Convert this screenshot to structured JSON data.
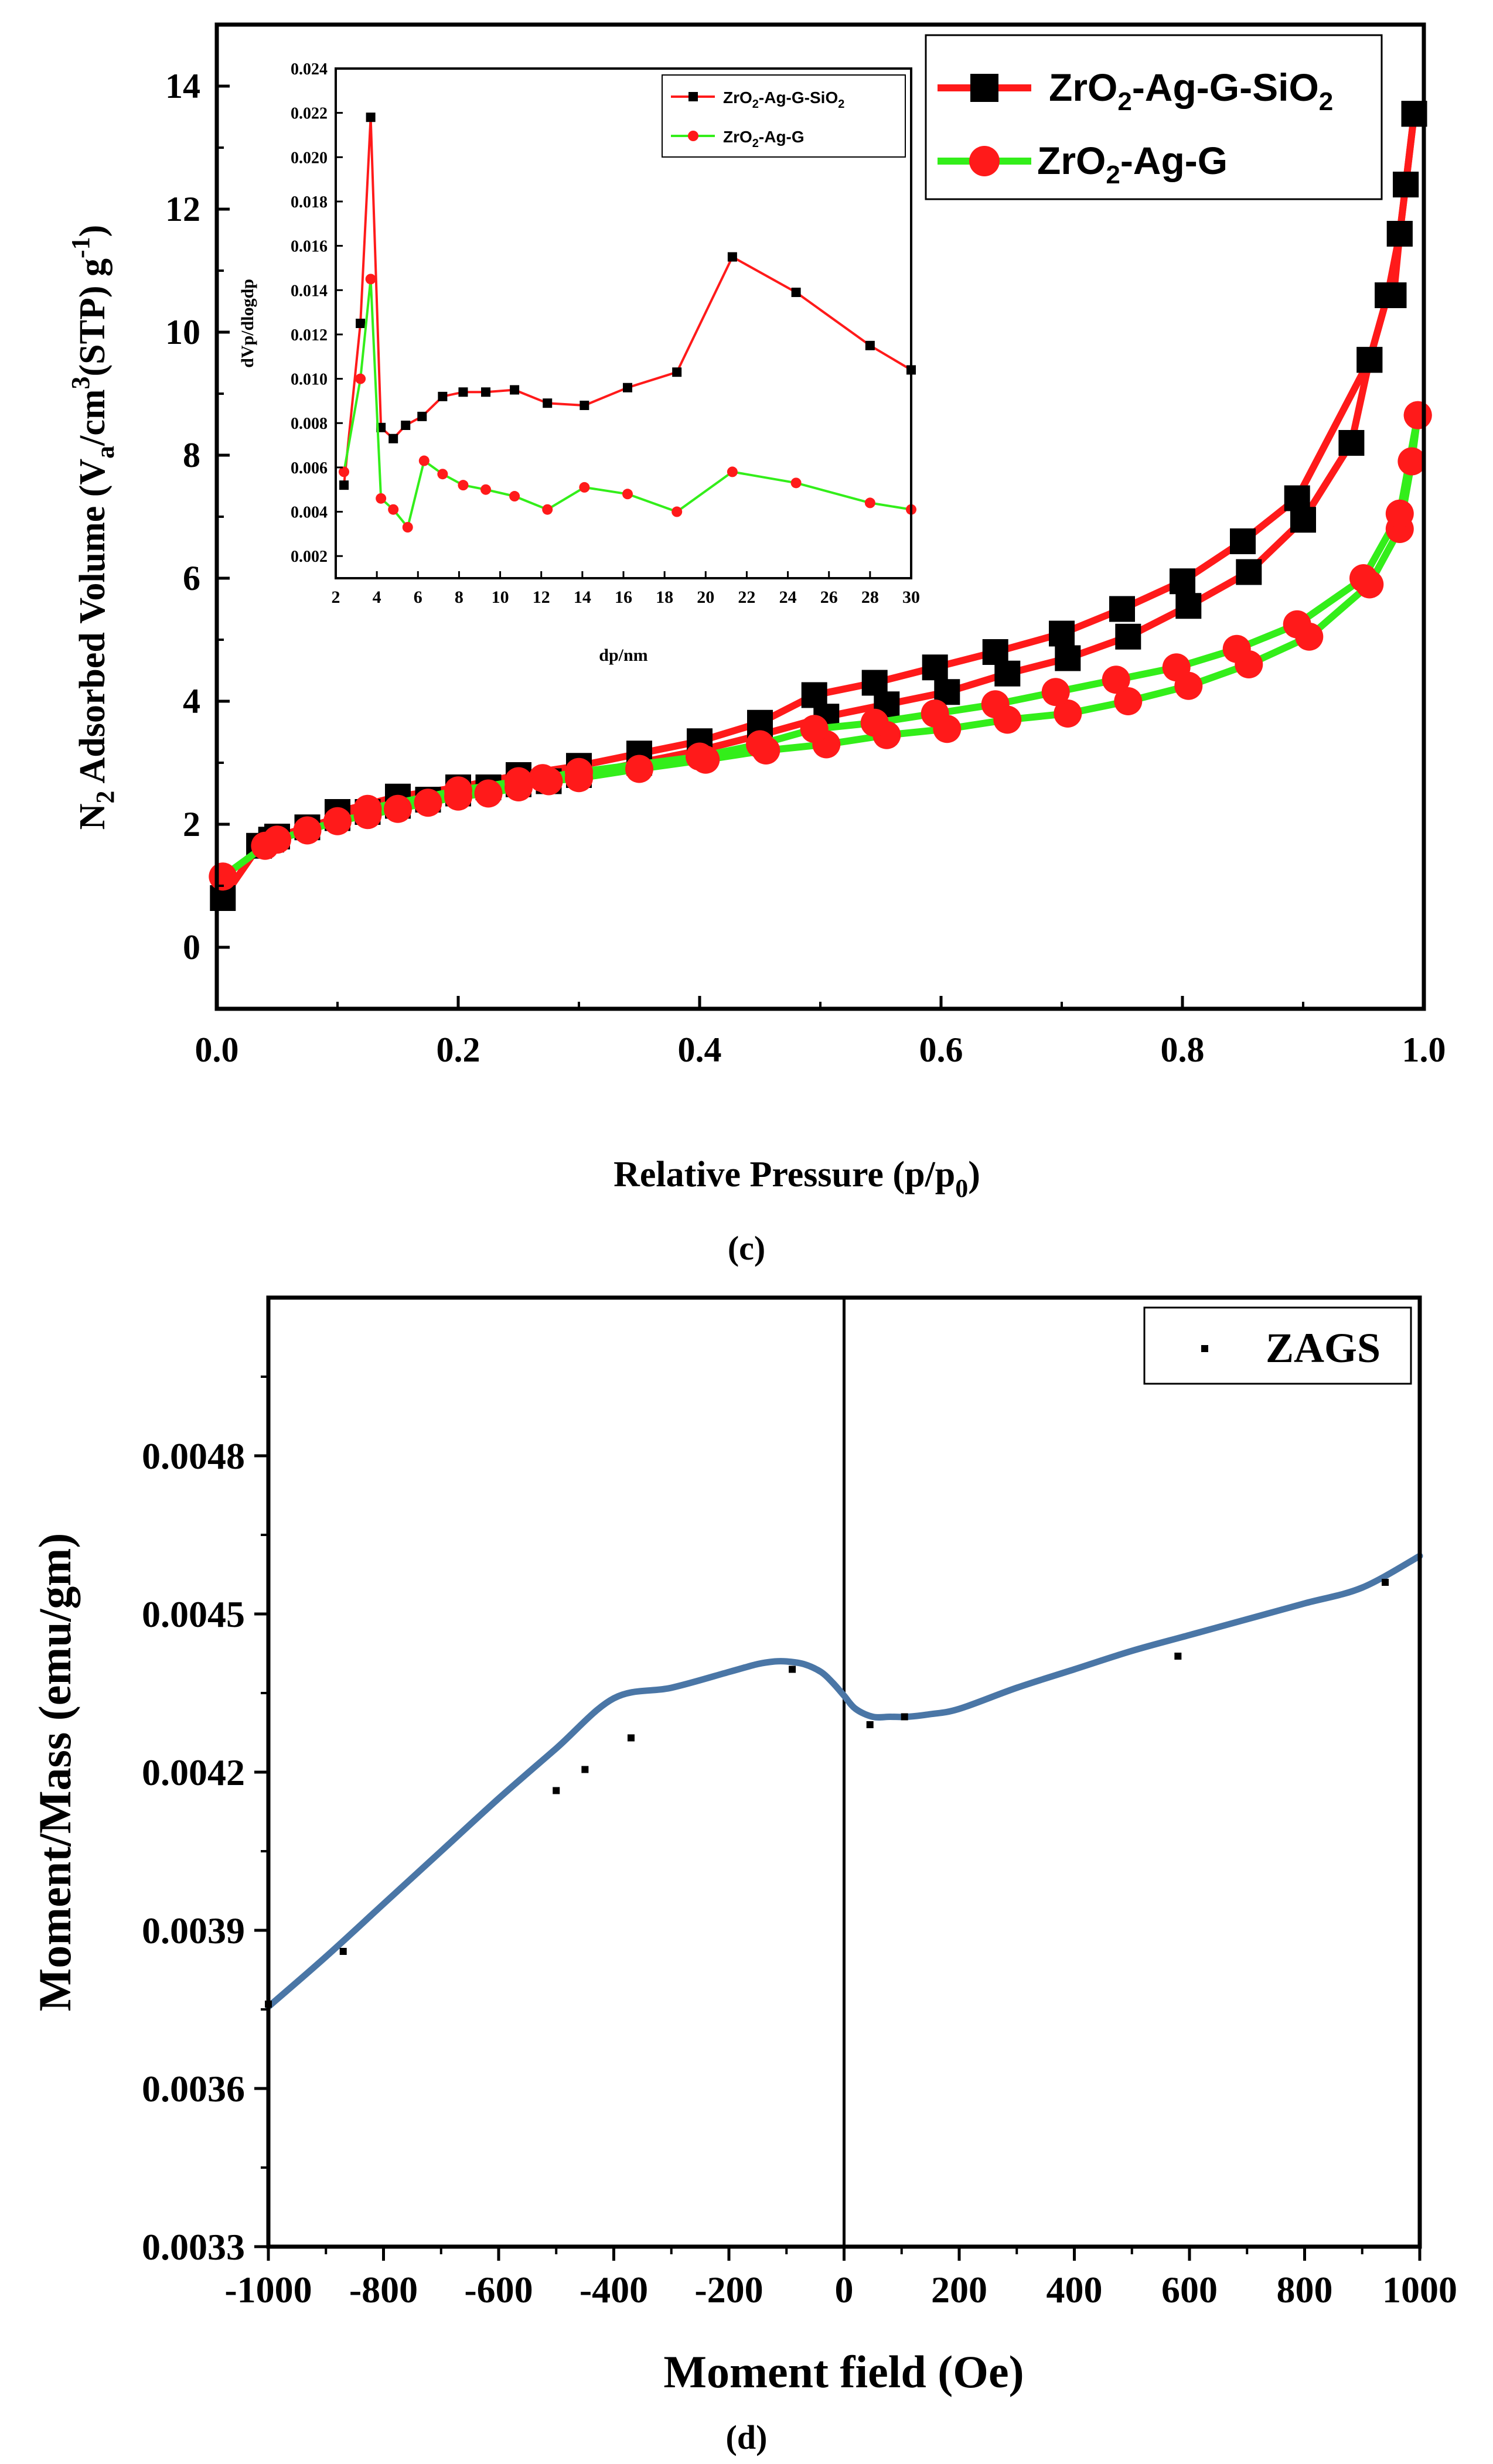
{
  "chart_data": [
    {
      "type": "line",
      "panel_label": "(c)",
      "title": "",
      "xlabel": "Relative Pressure (p/p0)",
      "xlabel_parts": {
        "main": "Relative Pressure (p/p",
        "sub": "0",
        "end": ")"
      },
      "ylabel": "N2 Adsorbed Volume (Va/cm3(STP) g-1)",
      "ylabel_parts": {
        "a": "N",
        "a_sub": "2",
        "b": " Adsorbed Volume (V",
        "b_sub": "a",
        "c": "/cm",
        "c_sup": "3",
        "d": "(STP) g",
        "d_sup": "-1",
        "e": ")"
      },
      "xlim": [
        0.0,
        1.0
      ],
      "ylim": [
        -1,
        15
      ],
      "x_ticks": [
        0.0,
        0.2,
        0.4,
        0.6,
        0.8,
        1.0
      ],
      "x_tick_labels": [
        "0.0",
        "0.2",
        "0.4",
        "0.6",
        "0.8",
        "1.0"
      ],
      "y_ticks": [
        0,
        2,
        4,
        6,
        8,
        10,
        12,
        14
      ],
      "y_tick_labels": [
        "0",
        "2",
        "4",
        "6",
        "8",
        "10",
        "12",
        "14"
      ],
      "legend_position": "top-right",
      "series": [
        {
          "name": "ZrO2-Ag-G-SiO2",
          "name_parts": {
            "a": "ZrO",
            "sub": "2",
            "b": "-Ag-G-SiO",
            "sub2": "2"
          },
          "color": "#ff1a1a",
          "marker": "square",
          "adsorption": {
            "x": [
              0.005,
              0.035,
              0.045,
              0.05,
              0.075,
              0.1,
              0.125,
              0.15,
              0.175,
              0.2,
              0.225,
              0.25,
              0.275,
              0.3,
              0.35,
              0.4,
              0.45,
              0.505,
              0.555,
              0.605,
              0.655,
              0.705,
              0.755,
              0.805,
              0.855,
              0.9,
              0.94,
              0.955,
              0.97,
              0.98,
              0.985,
              0.992
            ],
            "y": [
              0.8,
              1.65,
              1.75,
              1.8,
              1.95,
              2.1,
              2.2,
              2.3,
              2.4,
              2.5,
              2.6,
              2.65,
              2.7,
              2.8,
              3.0,
              3.2,
              3.45,
              3.75,
              3.95,
              4.15,
              4.45,
              4.7,
              5.05,
              5.55,
              6.1,
              6.95,
              8.2,
              9.55,
              10.6,
              11.6,
              12.4,
              13.55
            ]
          },
          "desorption": {
            "x": [
              0.992,
              0.985,
              0.98,
              0.975,
              0.97,
              0.955,
              0.895,
              0.85,
              0.8,
              0.75,
              0.7,
              0.645,
              0.595,
              0.545,
              0.495,
              0.45,
              0.4,
              0.35,
              0.3,
              0.25,
              0.2,
              0.15,
              0.1
            ],
            "y": [
              13.55,
              12.4,
              11.6,
              10.6,
              10.6,
              9.55,
              7.3,
              6.6,
              5.95,
              5.5,
              5.1,
              4.8,
              4.55,
              4.3,
              4.1,
              3.65,
              3.35,
              3.15,
              2.95,
              2.8,
              2.6,
              2.45,
              2.2
            ]
          }
        },
        {
          "name": "ZrO2-Ag-G",
          "name_parts": {
            "a": "ZrO",
            "sub": "2",
            "b": "-Ag-G",
            "sub2": ""
          },
          "color": "#33ee1a",
          "marker": "circle",
          "adsorption": {
            "x": [
              0.005,
              0.04,
              0.05,
              0.075,
              0.1,
              0.125,
              0.15,
              0.175,
              0.2,
              0.225,
              0.25,
              0.275,
              0.3,
              0.35,
              0.405,
              0.455,
              0.505,
              0.555,
              0.605,
              0.655,
              0.705,
              0.755,
              0.805,
              0.855,
              0.905,
              0.955,
              0.98,
              0.99,
              0.995
            ],
            "y": [
              1.15,
              1.65,
              1.75,
              1.9,
              2.05,
              2.15,
              2.25,
              2.35,
              2.45,
              2.5,
              2.6,
              2.7,
              2.75,
              2.9,
              3.05,
              3.2,
              3.3,
              3.45,
              3.55,
              3.7,
              3.8,
              4.0,
              4.25,
              4.6,
              5.05,
              5.9,
              6.8,
              7.9,
              8.65
            ]
          },
          "desorption": {
            "x": [
              0.995,
              0.98,
              0.95,
              0.895,
              0.845,
              0.795,
              0.745,
              0.695,
              0.645,
              0.595,
              0.545,
              0.495,
              0.45,
              0.4,
              0.3,
              0.27,
              0.25,
              0.2,
              0.125
            ],
            "y": [
              8.65,
              7.05,
              6.0,
              5.25,
              4.85,
              4.55,
              4.35,
              4.15,
              3.95,
              3.8,
              3.65,
              3.55,
              3.3,
              3.1,
              2.85,
              2.75,
              2.7,
              2.55,
              2.25
            ]
          }
        }
      ],
      "inset": {
        "type": "line",
        "xlabel": "dp/nm",
        "ylabel": "dVp/dlogdp",
        "xlim": [
          2,
          30
        ],
        "ylim": [
          0.001,
          0.024
        ],
        "x_ticks": [
          2,
          4,
          6,
          8,
          10,
          12,
          14,
          16,
          18,
          20,
          22,
          24,
          26,
          28,
          30
        ],
        "x_tick_labels": [
          "2",
          "4",
          "6",
          "8",
          "10",
          "12",
          "14",
          "16",
          "18",
          "20",
          "22",
          "24",
          "26",
          "28",
          "30"
        ],
        "y_ticks": [
          0.002,
          0.004,
          0.006,
          0.008,
          0.01,
          0.012,
          0.014,
          0.016,
          0.018,
          0.02,
          0.022,
          0.024
        ],
        "y_tick_labels": [
          "0.002",
          "0.004",
          "0.006",
          "0.008",
          "0.010",
          "0.012",
          "0.014",
          "0.016",
          "0.018",
          "0.020",
          "0.022",
          "0.024"
        ],
        "legend_position": "top-right",
        "series": [
          {
            "name": "ZrO2-Ag-G-SiO2",
            "name_parts": {
              "a": "ZrO",
              "sub": "2",
              "b": "-Ag-G-SiO",
              "sub2": "2"
            },
            "color": "#ff1a1a",
            "marker": "square",
            "x": [
              2.4,
              3.2,
              3.7,
              4.2,
              4.8,
              5.4,
              6.2,
              7.2,
              8.2,
              9.3,
              10.7,
              12.3,
              14.1,
              16.2,
              18.6,
              21.3,
              24.4,
              28.0,
              30.0
            ],
            "y": [
              0.0052,
              0.0125,
              0.0218,
              0.0078,
              0.0073,
              0.0079,
              0.0083,
              0.0092,
              0.0094,
              0.0094,
              0.0095,
              0.0089,
              0.0088,
              0.0096,
              0.0103,
              0.0155,
              0.0139,
              0.0115,
              0.0104
            ]
          },
          {
            "name": "ZrO2-Ag-G",
            "name_parts": {
              "a": "ZrO",
              "sub": "2",
              "b": "-Ag-G",
              "sub2": ""
            },
            "color": "#33ee1a",
            "marker": "circle",
            "x": [
              2.4,
              3.2,
              3.7,
              4.2,
              4.8,
              5.5,
              6.3,
              7.2,
              8.2,
              9.3,
              10.7,
              12.3,
              14.1,
              16.2,
              18.6,
              21.3,
              24.4,
              28.0,
              30.0
            ],
            "y": [
              0.0058,
              0.01,
              0.0145,
              0.0046,
              0.0041,
              0.0033,
              0.0063,
              0.0057,
              0.0052,
              0.005,
              0.0047,
              0.0041,
              0.0051,
              0.0048,
              0.004,
              0.0058,
              0.0053,
              0.0044,
              0.0041
            ]
          }
        ]
      }
    },
    {
      "type": "line",
      "panel_label": "(d)",
      "title": "",
      "xlabel": "Moment field (Oe)",
      "ylabel": "Moment/Mass (emu/gm)",
      "xlim": [
        -1000,
        1000
      ],
      "ylim": [
        0.0033,
        0.0051
      ],
      "x_ticks": [
        -1000,
        -800,
        -600,
        -400,
        -200,
        0,
        200,
        400,
        600,
        800,
        1000
      ],
      "x_tick_labels": [
        "-1000",
        "-800",
        "-600",
        "-400",
        "-200",
        "0",
        "200",
        "400",
        "600",
        "800",
        "1000"
      ],
      "y_ticks": [
        0.0033,
        0.0036,
        0.0039,
        0.0042,
        0.0045,
        0.0048
      ],
      "y_tick_labels": [
        "0.0033",
        "0.0036",
        "0.0039",
        "0.0042",
        "0.0045",
        "0.0048"
      ],
      "legend_position": "top-right",
      "legend_label": "ZAGS",
      "curve_color": "#4a76a6",
      "points": {
        "name": "ZAGS",
        "x": [
          -1000,
          -870,
          -500,
          -450,
          -370,
          -90,
          45,
          105,
          580,
          940
        ],
        "y": [
          0.00376,
          0.00386,
          0.004165,
          0.004205,
          0.004265,
          0.004395,
          0.00429,
          0.004305,
          0.00442,
          0.00456
        ]
      },
      "fit_curve": {
        "x": [
          -1000,
          -900,
          -800,
          -700,
          -600,
          -500,
          -400,
          -300,
          -200,
          -150,
          -120,
          -100,
          -70,
          -40,
          -20,
          0,
          20,
          50,
          80,
          110,
          150,
          200,
          300,
          400,
          500,
          600,
          700,
          800,
          900,
          1000
        ],
        "y": [
          0.003755,
          0.00385,
          0.00395,
          0.00405,
          0.00415,
          0.004245,
          0.00434,
          0.00436,
          0.00439,
          0.004405,
          0.00441,
          0.00441,
          0.004405,
          0.00439,
          0.00437,
          0.004345,
          0.00432,
          0.004305,
          0.004305,
          0.004305,
          0.00431,
          0.00432,
          0.00436,
          0.004395,
          0.00443,
          0.00446,
          0.00449,
          0.00452,
          0.00455,
          0.00461
        ]
      }
    }
  ]
}
